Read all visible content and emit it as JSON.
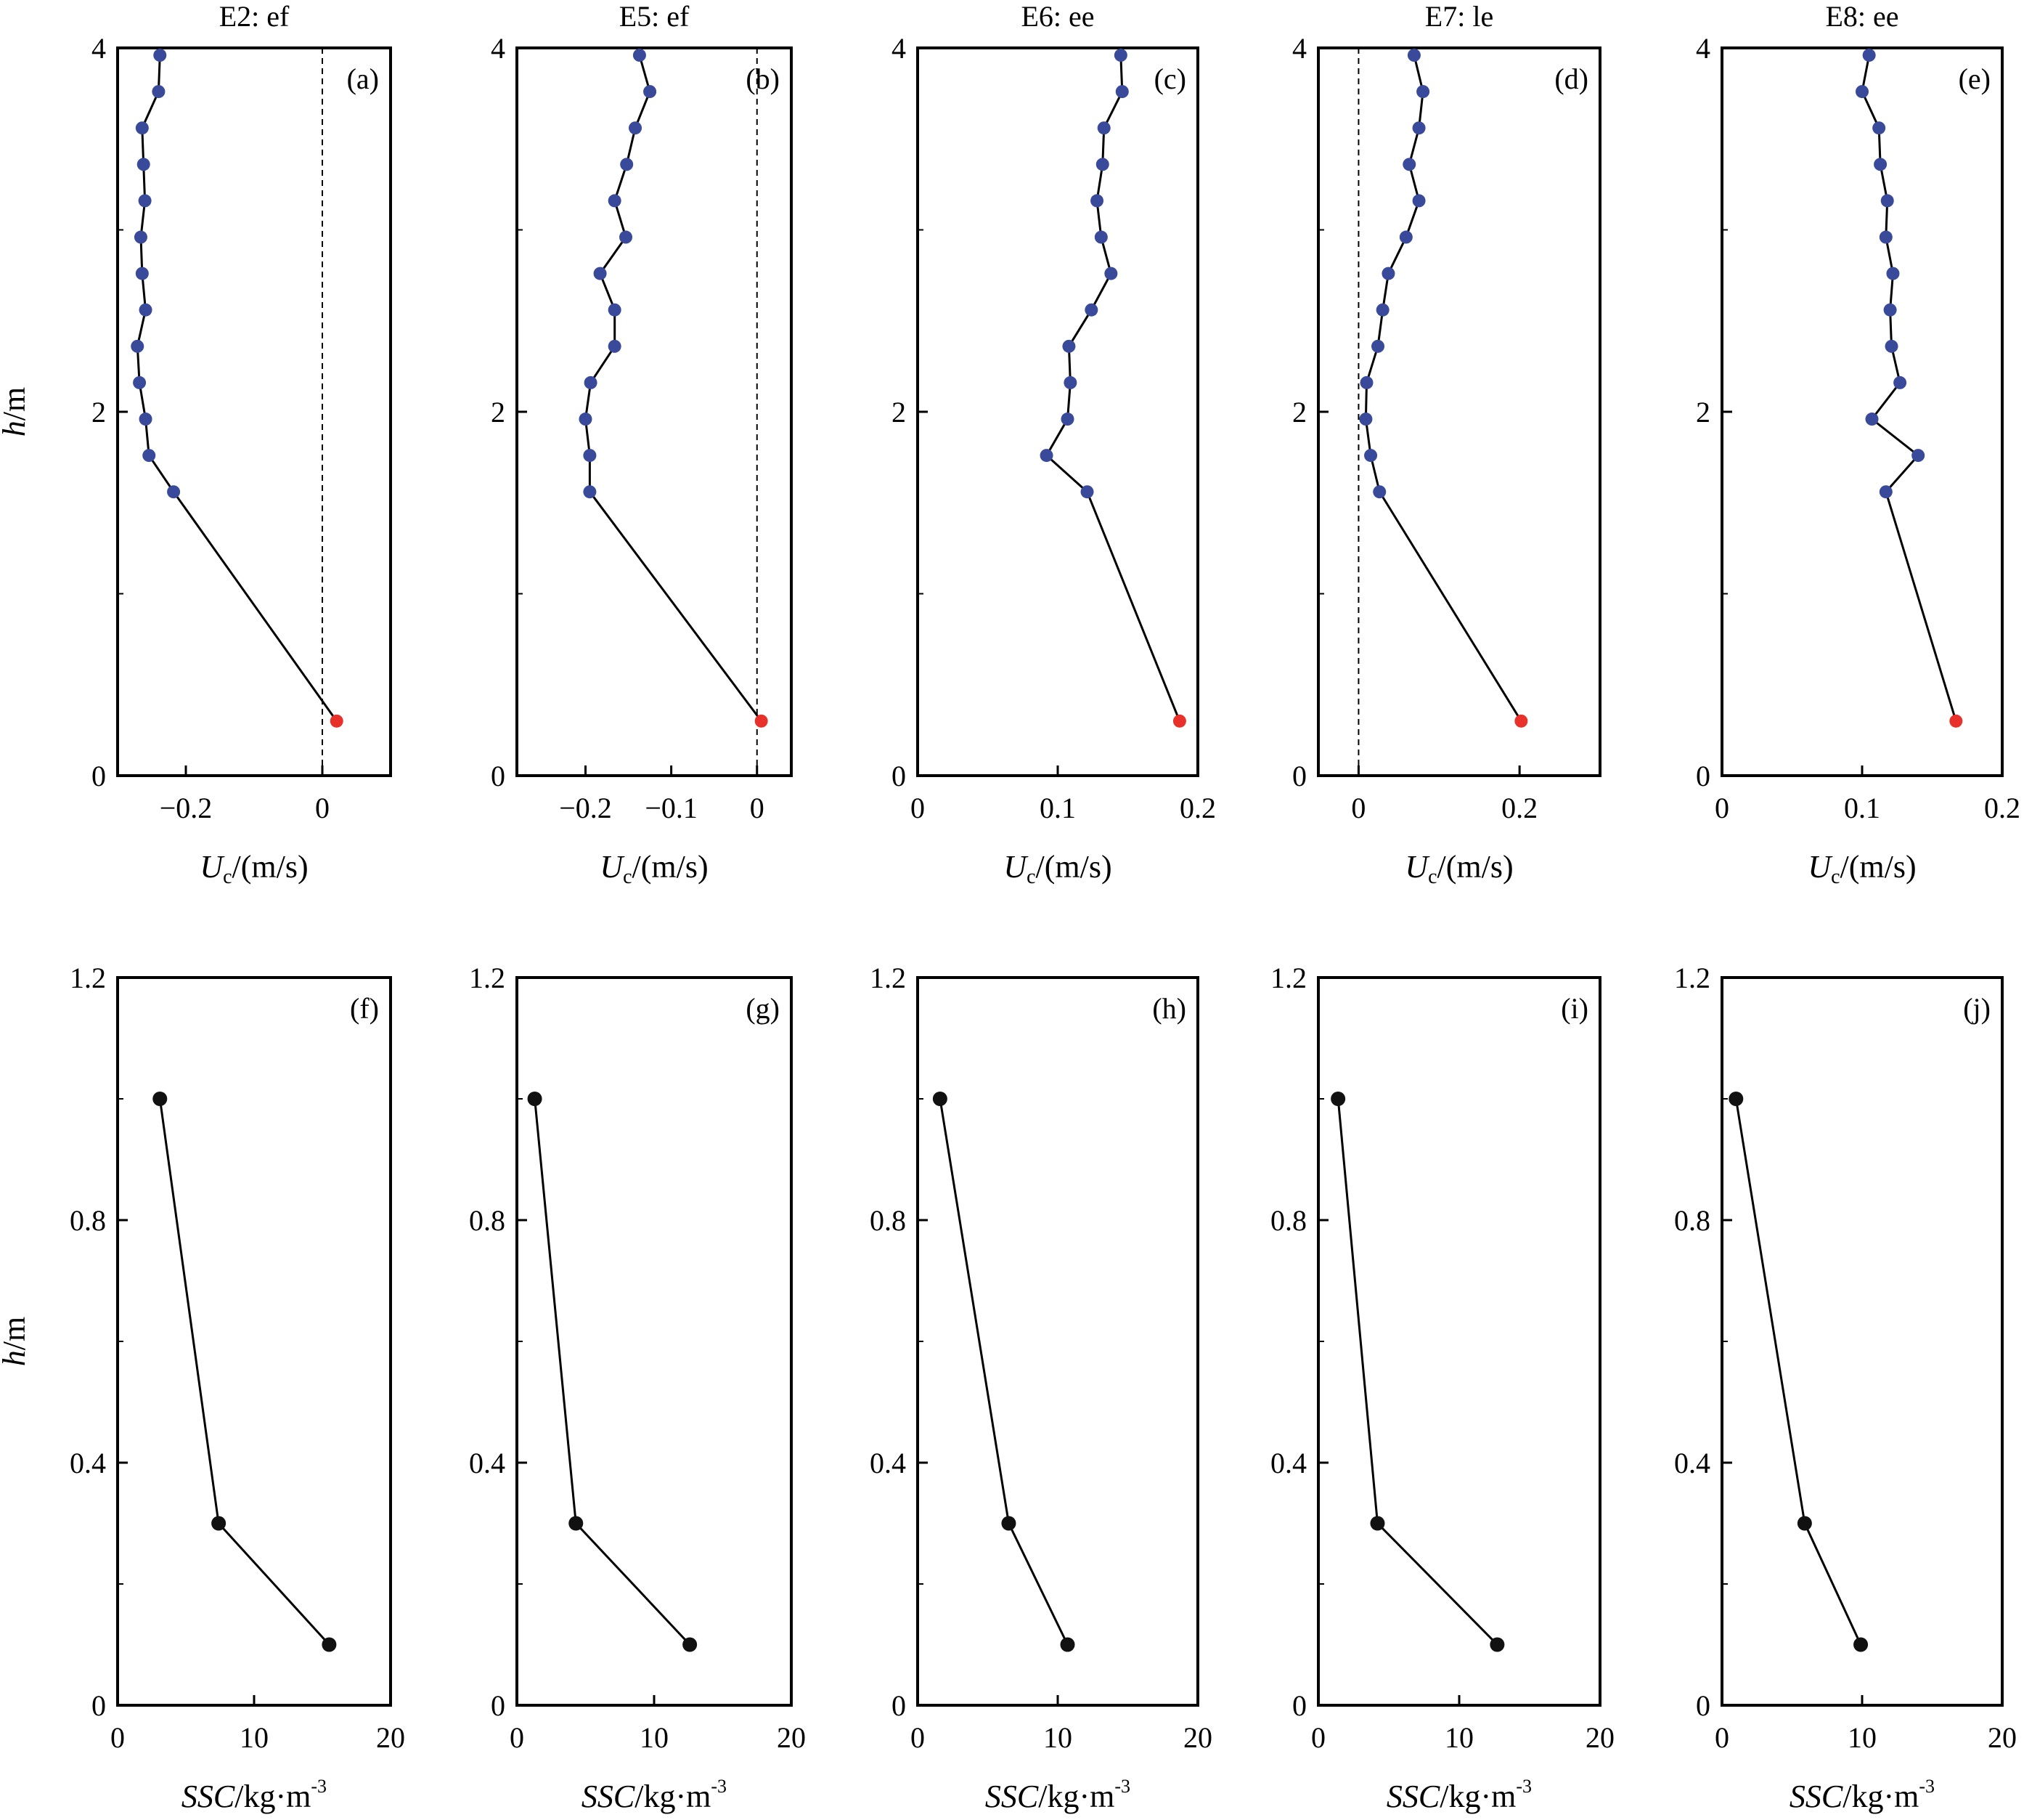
{
  "figure": {
    "upper_xlabel": {
      "main": "U",
      "sub": "c",
      "unit": "/(m/s)"
    },
    "upper_ylabel": {
      "main": "h",
      "unit": "/m"
    },
    "lower_xlabel": {
      "main": "SSC",
      "unit": "/kg·m",
      "sup": "-3"
    },
    "lower_ylabel": {
      "main": "h",
      "unit": "/m"
    }
  },
  "colors": {
    "upper_points": "#3a4a9a",
    "bottom_point": "#e8312a",
    "lower_points": "#111111",
    "line": "#000000"
  },
  "chart_data": [
    {
      "type": "line",
      "id": "a",
      "panel_label": "(a)",
      "title": "E2: ef",
      "xlim": [
        -0.3,
        0.1
      ],
      "ylim": [
        0,
        4
      ],
      "xticks": [
        -0.2,
        0
      ],
      "xtick_labels": [
        "−0.2",
        "0"
      ],
      "yticks": [
        0,
        2,
        4
      ],
      "ytick_labels": [
        "0",
        "2",
        "4"
      ],
      "zero_line": true,
      "points": [
        {
          "x": 0.021,
          "y": 0.3,
          "near_bed": true
        },
        {
          "x": -0.218,
          "y": 1.56
        },
        {
          "x": -0.254,
          "y": 1.76
        },
        {
          "x": -0.259,
          "y": 1.96
        },
        {
          "x": -0.268,
          "y": 2.16
        },
        {
          "x": -0.271,
          "y": 2.36
        },
        {
          "x": -0.259,
          "y": 2.56
        },
        {
          "x": -0.264,
          "y": 2.76
        },
        {
          "x": -0.266,
          "y": 2.96
        },
        {
          "x": -0.26,
          "y": 3.16
        },
        {
          "x": -0.262,
          "y": 3.36
        },
        {
          "x": -0.264,
          "y": 3.56
        },
        {
          "x": -0.24,
          "y": 3.76
        },
        {
          "x": -0.238,
          "y": 3.96
        }
      ]
    },
    {
      "type": "line",
      "id": "b",
      "panel_label": "(b)",
      "title": "E5: ef",
      "xlim": [
        -0.28,
        0.04
      ],
      "ylim": [
        0,
        4
      ],
      "xticks": [
        -0.2,
        -0.1,
        0
      ],
      "xtick_labels": [
        "−0.2",
        "−0.1",
        "0"
      ],
      "yticks": [
        0,
        2,
        4
      ],
      "ytick_labels": [
        "0",
        "2",
        "4"
      ],
      "zero_line": true,
      "points": [
        {
          "x": 0.005,
          "y": 0.3,
          "near_bed": true
        },
        {
          "x": -0.195,
          "y": 1.56
        },
        {
          "x": -0.195,
          "y": 1.76
        },
        {
          "x": -0.2,
          "y": 1.96
        },
        {
          "x": -0.194,
          "y": 2.16
        },
        {
          "x": -0.166,
          "y": 2.36
        },
        {
          "x": -0.166,
          "y": 2.56
        },
        {
          "x": -0.183,
          "y": 2.76
        },
        {
          "x": -0.153,
          "y": 2.96
        },
        {
          "x": -0.166,
          "y": 3.16
        },
        {
          "x": -0.152,
          "y": 3.36
        },
        {
          "x": -0.142,
          "y": 3.56
        },
        {
          "x": -0.125,
          "y": 3.76
        },
        {
          "x": -0.137,
          "y": 3.96
        }
      ]
    },
    {
      "type": "line",
      "id": "c",
      "panel_label": "(c)",
      "title": "E6: ee",
      "xlim": [
        0,
        0.2
      ],
      "ylim": [
        0,
        4
      ],
      "xticks": [
        0,
        0.1,
        0.2
      ],
      "xtick_labels": [
        "0",
        "0.1",
        "0.2"
      ],
      "yticks": [
        0,
        2,
        4
      ],
      "ytick_labels": [
        "0",
        "2",
        "4"
      ],
      "zero_line": false,
      "points": [
        {
          "x": 0.187,
          "y": 0.3,
          "near_bed": true
        },
        {
          "x": 0.121,
          "y": 1.56
        },
        {
          "x": 0.092,
          "y": 1.76
        },
        {
          "x": 0.107,
          "y": 1.96
        },
        {
          "x": 0.109,
          "y": 2.16
        },
        {
          "x": 0.108,
          "y": 2.36
        },
        {
          "x": 0.124,
          "y": 2.56
        },
        {
          "x": 0.138,
          "y": 2.76
        },
        {
          "x": 0.131,
          "y": 2.96
        },
        {
          "x": 0.128,
          "y": 3.16
        },
        {
          "x": 0.132,
          "y": 3.36
        },
        {
          "x": 0.133,
          "y": 3.56
        },
        {
          "x": 0.146,
          "y": 3.76
        },
        {
          "x": 0.145,
          "y": 3.96
        }
      ]
    },
    {
      "type": "line",
      "id": "d",
      "panel_label": "(d)",
      "title": "E7: le",
      "xlim": [
        -0.05,
        0.3
      ],
      "ylim": [
        0,
        4
      ],
      "xticks": [
        0,
        0.2
      ],
      "xtick_labels": [
        "0",
        "0.2"
      ],
      "yticks": [
        0,
        2,
        4
      ],
      "ytick_labels": [
        "0",
        "2",
        "4"
      ],
      "zero_line": true,
      "points": [
        {
          "x": 0.202,
          "y": 0.3,
          "near_bed": true
        },
        {
          "x": 0.026,
          "y": 1.56
        },
        {
          "x": 0.015,
          "y": 1.76
        },
        {
          "x": 0.009,
          "y": 1.96
        },
        {
          "x": 0.01,
          "y": 2.16
        },
        {
          "x": 0.024,
          "y": 2.36
        },
        {
          "x": 0.03,
          "y": 2.56
        },
        {
          "x": 0.037,
          "y": 2.76
        },
        {
          "x": 0.059,
          "y": 2.96
        },
        {
          "x": 0.075,
          "y": 3.16
        },
        {
          "x": 0.063,
          "y": 3.36
        },
        {
          "x": 0.075,
          "y": 3.56
        },
        {
          "x": 0.08,
          "y": 3.76
        },
        {
          "x": 0.069,
          "y": 3.96
        }
      ]
    },
    {
      "type": "line",
      "id": "e",
      "panel_label": "(e)",
      "title": "E8: ee",
      "xlim": [
        0,
        0.2
      ],
      "ylim": [
        0,
        4
      ],
      "xticks": [
        0,
        0.1,
        0.2
      ],
      "xtick_labels": [
        "0",
        "0.1",
        "0.2"
      ],
      "yticks": [
        0,
        2,
        4
      ],
      "ytick_labels": [
        "0",
        "2",
        "4"
      ],
      "zero_line": false,
      "points": [
        {
          "x": 0.167,
          "y": 0.3,
          "near_bed": true
        },
        {
          "x": 0.117,
          "y": 1.56
        },
        {
          "x": 0.14,
          "y": 1.76
        },
        {
          "x": 0.107,
          "y": 1.96
        },
        {
          "x": 0.127,
          "y": 2.16
        },
        {
          "x": 0.121,
          "y": 2.36
        },
        {
          "x": 0.12,
          "y": 2.56
        },
        {
          "x": 0.122,
          "y": 2.76
        },
        {
          "x": 0.117,
          "y": 2.96
        },
        {
          "x": 0.118,
          "y": 3.16
        },
        {
          "x": 0.113,
          "y": 3.36
        },
        {
          "x": 0.112,
          "y": 3.56
        },
        {
          "x": 0.1,
          "y": 3.76
        },
        {
          "x": 0.105,
          "y": 3.96
        }
      ]
    },
    {
      "type": "line",
      "id": "f",
      "panel_label": "(f)",
      "title": "",
      "xlim": [
        0,
        20
      ],
      "ylim": [
        0,
        1.2
      ],
      "xticks": [
        0,
        10,
        20
      ],
      "xtick_labels": [
        "0",
        "10",
        "20"
      ],
      "yticks": [
        0,
        0.4,
        0.8,
        1.2
      ],
      "ytick_labels": [
        "0",
        "0.4",
        "0.8",
        "1.2"
      ],
      "zero_line": false,
      "points": [
        {
          "x": 3.1,
          "y": 1.0
        },
        {
          "x": 7.4,
          "y": 0.3
        },
        {
          "x": 15.5,
          "y": 0.1
        }
      ]
    },
    {
      "type": "line",
      "id": "g",
      "panel_label": "(g)",
      "title": "",
      "xlim": [
        0,
        20
      ],
      "ylim": [
        0,
        1.2
      ],
      "xticks": [
        0,
        10,
        20
      ],
      "xtick_labels": [
        "0",
        "10",
        "20"
      ],
      "yticks": [
        0,
        0.4,
        0.8,
        1.2
      ],
      "ytick_labels": [
        "0",
        "0.4",
        "0.8",
        "1.2"
      ],
      "zero_line": false,
      "points": [
        {
          "x": 1.3,
          "y": 1.0
        },
        {
          "x": 4.3,
          "y": 0.3
        },
        {
          "x": 12.6,
          "y": 0.1
        }
      ]
    },
    {
      "type": "line",
      "id": "h",
      "panel_label": "(h)",
      "title": "",
      "xlim": [
        0,
        20
      ],
      "ylim": [
        0,
        1.2
      ],
      "xticks": [
        0,
        10,
        20
      ],
      "xtick_labels": [
        "0",
        "10",
        "20"
      ],
      "yticks": [
        0,
        0.4,
        0.8,
        1.2
      ],
      "ytick_labels": [
        "0",
        "0.4",
        "0.8",
        "1.2"
      ],
      "zero_line": false,
      "points": [
        {
          "x": 1.6,
          "y": 1.0
        },
        {
          "x": 6.5,
          "y": 0.3
        },
        {
          "x": 10.7,
          "y": 0.1
        }
      ]
    },
    {
      "type": "line",
      "id": "i",
      "panel_label": "(i)",
      "title": "",
      "xlim": [
        0,
        20
      ],
      "ylim": [
        0,
        1.2
      ],
      "xticks": [
        0,
        10,
        20
      ],
      "xtick_labels": [
        "0",
        "10",
        "20"
      ],
      "yticks": [
        0,
        0.4,
        0.8,
        1.2
      ],
      "ytick_labels": [
        "0",
        "0.4",
        "0.8",
        "1.2"
      ],
      "zero_line": false,
      "points": [
        {
          "x": 1.4,
          "y": 1.0
        },
        {
          "x": 4.2,
          "y": 0.3
        },
        {
          "x": 12.7,
          "y": 0.1
        }
      ]
    },
    {
      "type": "line",
      "id": "j",
      "panel_label": "(j)",
      "title": "",
      "xlim": [
        0,
        20
      ],
      "ylim": [
        0,
        1.2
      ],
      "xticks": [
        0,
        10,
        20
      ],
      "xtick_labels": [
        "0",
        "10",
        "20"
      ],
      "yticks": [
        0,
        0.4,
        0.8,
        1.2
      ],
      "ytick_labels": [
        "0",
        "0.4",
        "0.8",
        "1.2"
      ],
      "zero_line": false,
      "points": [
        {
          "x": 1.0,
          "y": 1.0
        },
        {
          "x": 5.9,
          "y": 0.3
        },
        {
          "x": 9.9,
          "y": 0.1
        }
      ]
    }
  ]
}
